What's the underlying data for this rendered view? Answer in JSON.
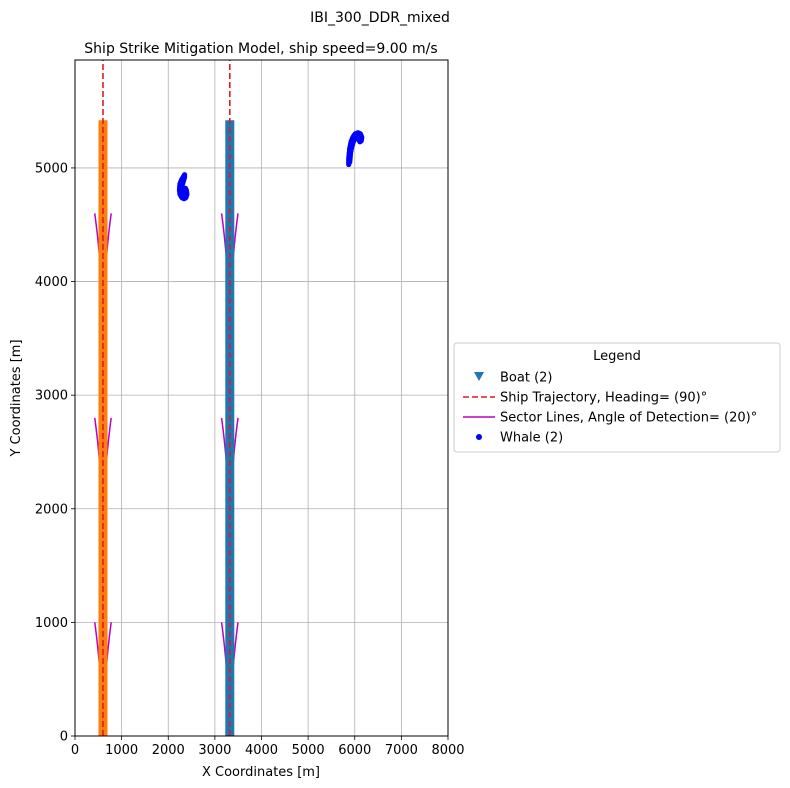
{
  "chart_data": {
    "type": "scatter",
    "suptitle": "IBI_300_DDR_mixed",
    "title": "Ship Strike Mitigation Model, ship speed=9.00 m/s",
    "xlabel": "X Coordinates [m]",
    "ylabel": "Y Coordinates [m]",
    "xlim": [
      0,
      8000
    ],
    "ylim": [
      0,
      5950
    ],
    "xticks": [
      0,
      1000,
      2000,
      3000,
      4000,
      5000,
      6000,
      7000,
      8000
    ],
    "yticks": [
      0,
      1000,
      2000,
      3000,
      4000,
      5000
    ],
    "grid": true,
    "legend": {
      "title": "Legend",
      "placement": "center-right-outside",
      "entries": [
        {
          "label": "Boat (2)",
          "marker": "triangle-down",
          "color": "#1f77b4"
        },
        {
          "label": "Ship Trajectory, Heading= (90)°",
          "style": "dashed",
          "color": "#e41a1c"
        },
        {
          "label": "Sector Lines, Angle of Detection= (20)°",
          "style": "solid",
          "color": "#bf00bf"
        },
        {
          "label": "Whale (2)",
          "marker": "dot",
          "color": "#0000ff"
        }
      ]
    },
    "boats": [
      {
        "x": 600,
        "y_start": 0,
        "y_end": 5420,
        "color": "#ff7f0e"
      },
      {
        "x": 3320,
        "y_start": 0,
        "y_end": 5420,
        "color": "#1f77b4"
      }
    ],
    "trajectories": [
      {
        "x": 600,
        "y_start": 0,
        "y_end": 5950,
        "color": "#e41a1c"
      },
      {
        "x": 3320,
        "y_start": 0,
        "y_end": 5950,
        "color": "#e41a1c"
      }
    ],
    "sector_lines": {
      "color": "#bf00bf",
      "sectors": [
        {
          "x": 600,
          "apex_y": 0,
          "top_y": 1000
        },
        {
          "x": 600,
          "apex_y": 1800,
          "top_y": 2800
        },
        {
          "x": 600,
          "apex_y": 3600,
          "top_y": 4600
        },
        {
          "x": 3320,
          "apex_y": 0,
          "top_y": 1000
        },
        {
          "x": 3320,
          "apex_y": 1800,
          "top_y": 2800
        },
        {
          "x": 3320,
          "apex_y": 3600,
          "top_y": 4600
        }
      ]
    },
    "whales": {
      "color": "#0000ff",
      "series": [
        {
          "values": [
            [
              2350,
              4940
            ],
            [
              2290,
              4900
            ],
            [
              2250,
              4860
            ],
            [
              2240,
              4810
            ],
            [
              2250,
              4770
            ],
            [
              2290,
              4740
            ],
            [
              2340,
              4730
            ],
            [
              2380,
              4740
            ],
            [
              2400,
              4770
            ],
            [
              2390,
              4800
            ],
            [
              2370,
              4820
            ],
            [
              2360,
              4790
            ],
            [
              2330,
              4770
            ],
            [
              2300,
              4780
            ],
            [
              2290,
              4810
            ],
            [
              2300,
              4850
            ],
            [
              2330,
              4890
            ],
            [
              2350,
              4920
            ]
          ]
        },
        {
          "values": [
            [
              5870,
              5030
            ],
            [
              5870,
              5080
            ],
            [
              5880,
              5120
            ],
            [
              5890,
              5170
            ],
            [
              5920,
              5230
            ],
            [
              5960,
              5270
            ],
            [
              6010,
              5300
            ],
            [
              6070,
              5310
            ],
            [
              6120,
              5300
            ],
            [
              6150,
              5270
            ],
            [
              6140,
              5240
            ],
            [
              6110,
              5230
            ],
            [
              6090,
              5250
            ],
            [
              6060,
              5270
            ],
            [
              6010,
              5260
            ],
            [
              5970,
              5230
            ],
            [
              5940,
              5190
            ],
            [
              5910,
              5130
            ],
            [
              5900,
              5080
            ],
            [
              5890,
              5050
            ]
          ]
        }
      ]
    }
  }
}
